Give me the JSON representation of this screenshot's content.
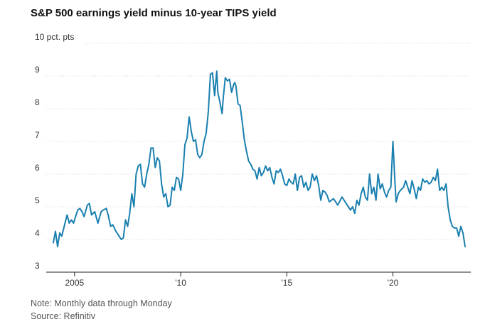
{
  "title": "S&P 500 earnings yield minus 10-year TIPS yield",
  "note": "Note: Monthly data through Monday",
  "source": "Source: Refinitiv",
  "line_color": "#1a80b0",
  "chart_data": {
    "type": "line",
    "title": "S&P 500 earnings yield minus 10-year TIPS yield",
    "xlabel": "",
    "ylabel": "",
    "ylim": [
      3,
      10
    ],
    "xlim": [
      2004.0,
      2023.5
    ],
    "yticks": [
      {
        "value": 10,
        "label": "10 pct. pts"
      },
      {
        "value": 9,
        "label": "9"
      },
      {
        "value": 8,
        "label": "8"
      },
      {
        "value": 7,
        "label": "7"
      },
      {
        "value": 6,
        "label": "6"
      },
      {
        "value": 5,
        "label": "5"
      },
      {
        "value": 4,
        "label": "4"
      },
      {
        "value": 3,
        "label": "3"
      }
    ],
    "xticks": [
      {
        "value": 2005,
        "label": "2005"
      },
      {
        "value": 2010,
        "label": "'10"
      },
      {
        "value": 2015,
        "label": "'15"
      },
      {
        "value": 2020,
        "label": "'20"
      }
    ],
    "grid": true,
    "series": [
      {
        "x": [
          2004.0,
          2004.1,
          2004.2,
          2004.3,
          2004.4,
          2004.55,
          2004.65,
          2004.75,
          2004.85,
          2004.95,
          2005.05,
          2005.15,
          2005.25,
          2005.35,
          2005.45,
          2005.6,
          2005.7,
          2005.8,
          2005.95,
          2006.1,
          2006.25,
          2006.35,
          2006.5,
          2006.6,
          2006.7,
          2006.8,
          2006.95,
          2007.1,
          2007.2,
          2007.3,
          2007.4,
          2007.5,
          2007.6,
          2007.7,
          2007.8,
          2007.9,
          2008.0,
          2008.1,
          2008.2,
          2008.3,
          2008.4,
          2008.5,
          2008.6,
          2008.7,
          2008.8,
          2008.9,
          2009.0,
          2009.1,
          2009.2,
          2009.3,
          2009.4,
          2009.5,
          2009.6,
          2009.7,
          2009.8,
          2009.9,
          2010.0,
          2010.1,
          2010.2,
          2010.3,
          2010.4,
          2010.5,
          2010.6,
          2010.7,
          2010.8,
          2010.9,
          2011.0,
          2011.1,
          2011.2,
          2011.3,
          2011.4,
          2011.5,
          2011.6,
          2011.7,
          2011.75,
          2011.85,
          2011.95,
          2012.0,
          2012.1,
          2012.2,
          2012.3,
          2012.4,
          2012.5,
          2012.55,
          2012.6,
          2012.7,
          2012.8,
          2012.9,
          2013.0,
          2013.1,
          2013.2,
          2013.3,
          2013.4,
          2013.5,
          2013.6,
          2013.7,
          2013.8,
          2013.9,
          2014.0,
          2014.1,
          2014.2,
          2014.3,
          2014.4,
          2014.5,
          2014.6,
          2014.7,
          2014.8,
          2014.9,
          2015.0,
          2015.1,
          2015.2,
          2015.3,
          2015.4,
          2015.5,
          2015.6,
          2015.7,
          2015.8,
          2015.9,
          2016.0,
          2016.1,
          2016.2,
          2016.3,
          2016.4,
          2016.5,
          2016.6,
          2016.7,
          2016.8,
          2016.9,
          2017.0,
          2017.2,
          2017.4,
          2017.6,
          2017.8,
          2018.0,
          2018.1,
          2018.2,
          2018.3,
          2018.4,
          2018.5,
          2018.6,
          2018.7,
          2018.8,
          2018.9,
          2019.0,
          2019.1,
          2019.2,
          2019.3,
          2019.4,
          2019.5,
          2019.6,
          2019.7,
          2019.8,
          2019.9,
          2020.0,
          2020.1,
          2020.15,
          2020.25,
          2020.35,
          2020.5,
          2020.6,
          2020.7,
          2020.8,
          2020.9,
          2021.0,
          2021.1,
          2021.2,
          2021.3,
          2021.4,
          2021.5,
          2021.6,
          2021.7,
          2021.8,
          2021.9,
          2022.0,
          2022.1,
          2022.2,
          2022.3,
          2022.4,
          2022.5,
          2022.6,
          2022.7,
          2022.8,
          2022.9,
          2023.0,
          2023.1,
          2023.2,
          2023.3,
          2023.4
        ],
        "values": [
          3.9,
          4.25,
          3.78,
          4.2,
          4.1,
          4.5,
          4.75,
          4.5,
          4.6,
          4.5,
          4.7,
          4.9,
          4.95,
          4.85,
          4.7,
          5.05,
          5.1,
          4.75,
          4.85,
          4.5,
          4.85,
          4.9,
          4.95,
          4.7,
          4.4,
          4.45,
          4.25,
          4.1,
          4.0,
          4.05,
          4.6,
          4.4,
          4.8,
          5.4,
          5.0,
          6.0,
          6.25,
          6.3,
          5.7,
          5.6,
          6.0,
          6.3,
          6.8,
          6.8,
          6.2,
          6.5,
          6.4,
          5.7,
          5.3,
          5.4,
          5.0,
          5.05,
          5.6,
          5.5,
          5.9,
          5.85,
          5.5,
          6.0,
          6.9,
          7.1,
          7.75,
          7.3,
          7.0,
          7.05,
          6.6,
          6.5,
          6.6,
          7.0,
          7.25,
          7.9,
          9.05,
          9.1,
          8.4,
          9.15,
          8.5,
          8.2,
          7.85,
          8.3,
          8.95,
          8.85,
          8.9,
          8.5,
          8.75,
          8.8,
          8.7,
          8.15,
          8.1,
          7.6,
          7.05,
          6.7,
          6.4,
          6.3,
          6.15,
          6.1,
          5.85,
          6.2,
          5.95,
          6.05,
          6.25,
          6.1,
          6.2,
          5.9,
          5.7,
          6.1,
          6.05,
          6.15,
          5.95,
          5.7,
          5.65,
          5.85,
          5.75,
          5.7,
          6.0,
          5.5,
          5.9,
          5.95,
          5.6,
          5.75,
          5.5,
          5.6,
          6.0,
          5.8,
          5.95,
          5.65,
          5.2,
          5.5,
          5.45,
          5.35,
          5.15,
          5.25,
          5.05,
          5.3,
          5.1,
          4.9,
          5.0,
          4.8,
          5.2,
          5.05,
          5.4,
          5.6,
          5.3,
          5.2,
          6.0,
          5.4,
          5.6,
          5.2,
          6.0,
          5.55,
          5.7,
          5.45,
          5.3,
          5.5,
          5.6,
          7.0,
          5.7,
          5.15,
          5.4,
          5.5,
          5.6,
          5.8,
          5.6,
          5.4,
          5.8,
          5.55,
          5.25,
          5.6,
          5.5,
          5.85,
          5.75,
          5.8,
          5.7,
          5.75,
          5.9,
          5.8,
          6.15,
          5.5,
          5.6,
          5.5,
          5.7,
          5.0,
          4.6,
          4.4,
          4.35,
          4.35,
          4.1,
          4.4,
          4.2,
          3.78
        ]
      }
    ]
  }
}
